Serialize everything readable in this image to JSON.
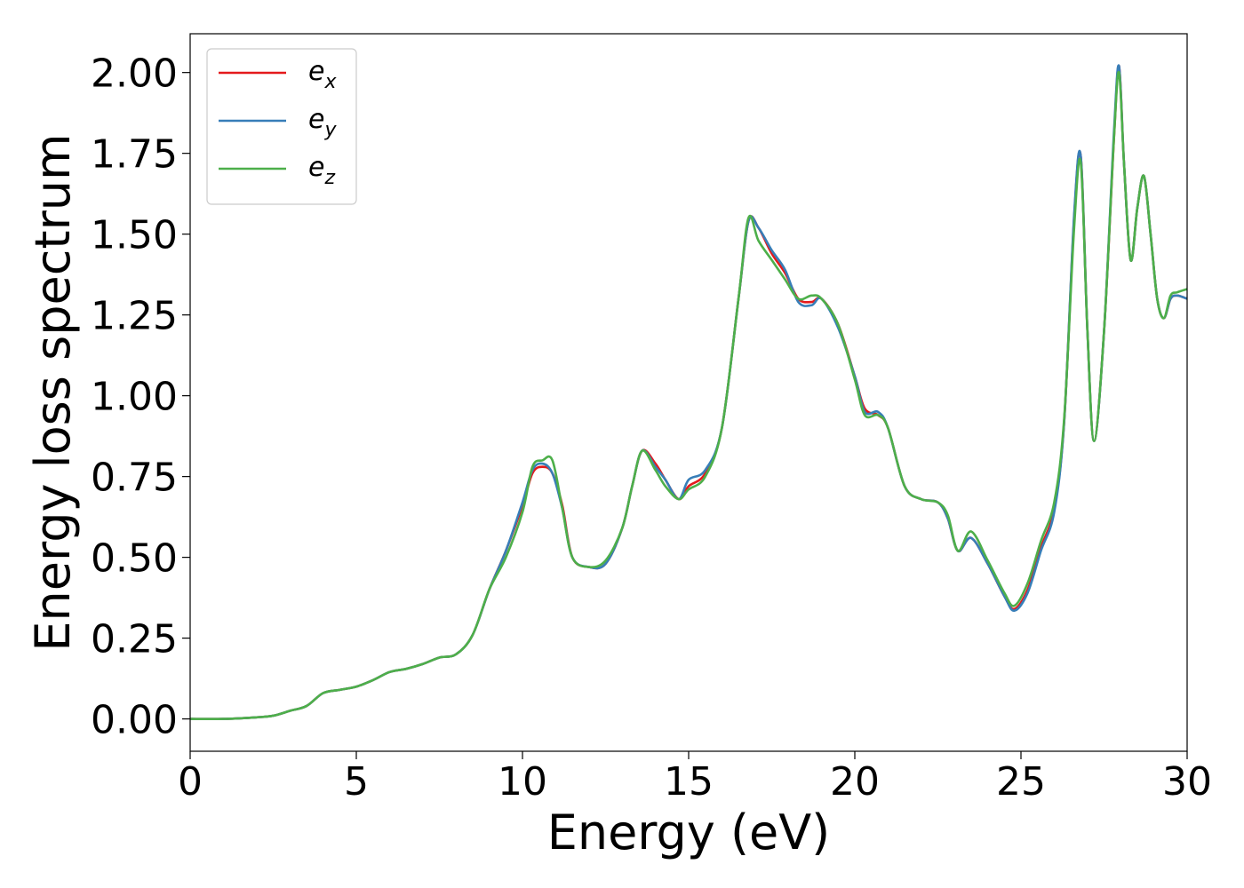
{
  "chart_data": {
    "type": "line",
    "xlabel": "Energy (eV)",
    "ylabel": "Energy loss spectrum",
    "xlim": [
      0,
      30
    ],
    "ylim": [
      -0.1,
      2.12
    ],
    "x_ticks": [
      0,
      5,
      10,
      15,
      20,
      25,
      30
    ],
    "x_tick_labels": [
      "0",
      "5",
      "10",
      "15",
      "20",
      "25",
      "30"
    ],
    "y_ticks": [
      0,
      0.25,
      0.5,
      0.75,
      1.0,
      1.25,
      1.5,
      1.75,
      2.0
    ],
    "y_tick_labels": [
      "0.00",
      "0.25",
      "0.50",
      "0.75",
      "1.00",
      "1.25",
      "1.50",
      "1.75",
      "2.00"
    ],
    "grid": false,
    "legend": {
      "position": "top-left"
    },
    "series": [
      {
        "name": "e_x",
        "legend_base": "e",
        "legend_sub": "x",
        "color": "#e41a1c",
        "x": [
          0,
          1,
          2,
          2.5,
          3,
          3.5,
          4,
          4.5,
          5,
          5.5,
          6,
          6.5,
          7,
          7.5,
          8,
          8.5,
          9,
          9.5,
          10,
          10.3,
          10.6,
          10.9,
          11.2,
          11.5,
          12,
          12.5,
          13,
          13.3,
          13.6,
          14,
          14.3,
          14.7,
          15,
          15.5,
          16,
          16.5,
          16.8,
          17.1,
          17.5,
          17.9,
          18.3,
          18.7,
          19,
          19.5,
          20,
          20.3,
          20.7,
          21,
          21.5,
          22,
          22.5,
          22.8,
          23.1,
          23.5,
          24,
          24.5,
          24.8,
          25.2,
          25.6,
          26,
          26.3,
          26.6,
          26.8,
          27,
          27.2,
          27.5,
          27.8,
          27.95,
          28.1,
          28.3,
          28.5,
          28.7,
          28.9,
          29.1,
          29.3,
          29.5,
          29.7,
          30
        ],
        "y": [
          0,
          0,
          0.005,
          0.01,
          0.025,
          0.04,
          0.08,
          0.09,
          0.1,
          0.12,
          0.145,
          0.155,
          0.17,
          0.19,
          0.2,
          0.26,
          0.4,
          0.52,
          0.66,
          0.76,
          0.78,
          0.76,
          0.66,
          0.5,
          0.47,
          0.48,
          0.59,
          0.72,
          0.83,
          0.79,
          0.74,
          0.68,
          0.72,
          0.76,
          0.9,
          1.3,
          1.54,
          1.52,
          1.44,
          1.38,
          1.3,
          1.29,
          1.3,
          1.22,
          1.06,
          0.96,
          0.94,
          0.9,
          0.72,
          0.68,
          0.67,
          0.62,
          0.52,
          0.56,
          0.48,
          0.38,
          0.34,
          0.4,
          0.53,
          0.65,
          0.92,
          1.55,
          1.74,
          1.2,
          0.86,
          1.2,
          1.8,
          2.02,
          1.72,
          1.42,
          1.58,
          1.68,
          1.5,
          1.3,
          1.24,
          1.3,
          1.31,
          1.3
        ]
      },
      {
        "name": "e_y",
        "legend_base": "e",
        "legend_sub": "y",
        "color": "#377eb8",
        "x": [
          0,
          1,
          2,
          2.5,
          3,
          3.5,
          4,
          4.5,
          5,
          5.5,
          6,
          6.5,
          7,
          7.5,
          8,
          8.5,
          9,
          9.5,
          10,
          10.3,
          10.6,
          10.9,
          11.2,
          11.5,
          12,
          12.5,
          13,
          13.3,
          13.6,
          14,
          14.3,
          14.7,
          15,
          15.5,
          16,
          16.5,
          16.8,
          17.1,
          17.5,
          17.9,
          18.3,
          18.7,
          19,
          19.5,
          20,
          20.3,
          20.7,
          21,
          21.5,
          22,
          22.5,
          22.8,
          23.1,
          23.5,
          24,
          24.5,
          24.8,
          25.2,
          25.6,
          26,
          26.3,
          26.6,
          26.8,
          27,
          27.2,
          27.5,
          27.8,
          27.95,
          28.1,
          28.3,
          28.5,
          28.7,
          28.9,
          29.1,
          29.3,
          29.5,
          29.7,
          30
        ],
        "y": [
          0,
          0,
          0.005,
          0.01,
          0.025,
          0.04,
          0.08,
          0.09,
          0.1,
          0.12,
          0.145,
          0.155,
          0.17,
          0.19,
          0.2,
          0.26,
          0.4,
          0.52,
          0.67,
          0.77,
          0.79,
          0.76,
          0.65,
          0.5,
          0.47,
          0.48,
          0.59,
          0.72,
          0.83,
          0.78,
          0.74,
          0.68,
          0.74,
          0.77,
          0.9,
          1.3,
          1.54,
          1.52,
          1.45,
          1.39,
          1.29,
          1.28,
          1.3,
          1.21,
          1.06,
          0.95,
          0.95,
          0.9,
          0.72,
          0.68,
          0.67,
          0.62,
          0.52,
          0.56,
          0.48,
          0.38,
          0.335,
          0.39,
          0.52,
          0.64,
          0.92,
          1.56,
          1.74,
          1.2,
          0.86,
          1.2,
          1.82,
          2.02,
          1.72,
          1.42,
          1.58,
          1.68,
          1.5,
          1.3,
          1.24,
          1.3,
          1.31,
          1.3
        ]
      },
      {
        "name": "e_z",
        "legend_base": "e",
        "legend_sub": "z",
        "color": "#4daf4a",
        "x": [
          0,
          1,
          2,
          2.5,
          3,
          3.5,
          4,
          4.5,
          5,
          5.5,
          6,
          6.5,
          7,
          7.5,
          8,
          8.5,
          9,
          9.5,
          10,
          10.3,
          10.6,
          10.9,
          11.2,
          11.5,
          12,
          12.5,
          13,
          13.3,
          13.6,
          14,
          14.3,
          14.7,
          15,
          15.5,
          16,
          16.5,
          16.8,
          17.1,
          17.5,
          17.9,
          18.3,
          18.7,
          19,
          19.5,
          20,
          20.3,
          20.7,
          21,
          21.5,
          22,
          22.5,
          22.8,
          23.1,
          23.5,
          24,
          24.5,
          24.8,
          25.2,
          25.6,
          26,
          26.3,
          26.6,
          26.8,
          27,
          27.2,
          27.5,
          27.8,
          27.95,
          28.1,
          28.3,
          28.5,
          28.7,
          28.9,
          29.1,
          29.3,
          29.5,
          29.7,
          30
        ],
        "y": [
          0,
          0,
          0.005,
          0.01,
          0.025,
          0.04,
          0.08,
          0.09,
          0.1,
          0.12,
          0.145,
          0.155,
          0.17,
          0.19,
          0.2,
          0.26,
          0.4,
          0.5,
          0.64,
          0.78,
          0.8,
          0.8,
          0.65,
          0.5,
          0.47,
          0.49,
          0.59,
          0.72,
          0.83,
          0.77,
          0.72,
          0.68,
          0.71,
          0.75,
          0.9,
          1.3,
          1.55,
          1.48,
          1.42,
          1.36,
          1.3,
          1.31,
          1.3,
          1.22,
          1.05,
          0.94,
          0.94,
          0.9,
          0.72,
          0.68,
          0.67,
          0.63,
          0.52,
          0.58,
          0.49,
          0.39,
          0.35,
          0.42,
          0.55,
          0.67,
          0.93,
          1.52,
          1.72,
          1.2,
          0.86,
          1.2,
          1.8,
          2.0,
          1.72,
          1.42,
          1.58,
          1.68,
          1.5,
          1.3,
          1.24,
          1.31,
          1.32,
          1.33
        ]
      }
    ]
  }
}
